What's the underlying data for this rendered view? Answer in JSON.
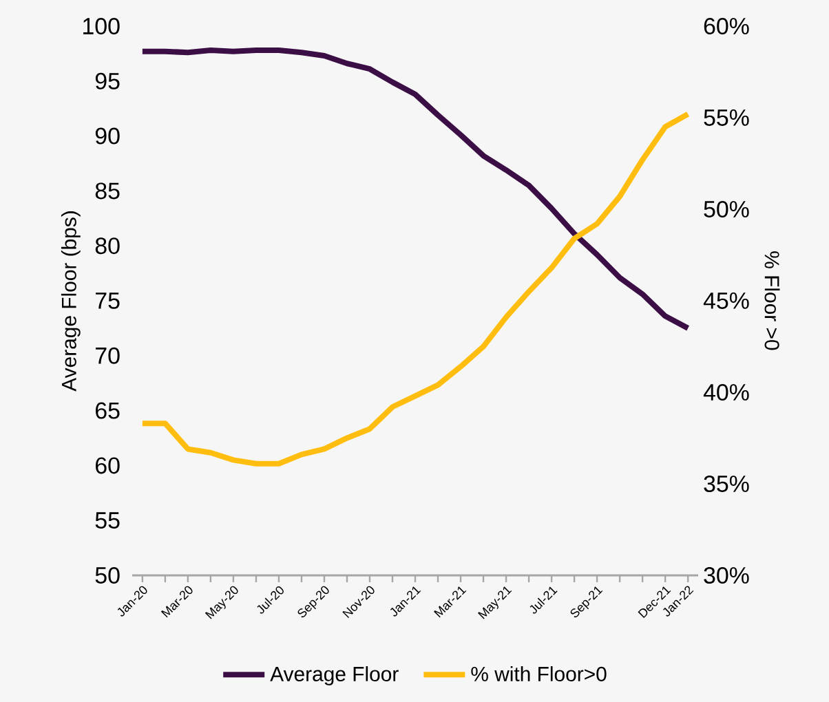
{
  "chart_data": {
    "type": "line",
    "ylabel": "Average Floor (bps)",
    "y2label": "% Floor >0",
    "categories": [
      "Jan-20",
      null,
      "Mar-20",
      null,
      "May-20",
      null,
      "Jul-20",
      null,
      "Sep-20",
      null,
      "Nov-20",
      null,
      "Jan-21",
      null,
      "Mar-21",
      null,
      "May-21",
      null,
      "Jul-21",
      null,
      "Sep-21",
      null,
      null,
      "Dec-21",
      "Jan-22"
    ],
    "series": [
      {
        "name": "Average Floor",
        "color": "#3b0f45",
        "values": [
          97.7,
          97.7,
          97.6,
          97.8,
          97.7,
          97.8,
          97.8,
          97.6,
          97.3,
          96.6,
          96.1,
          94.9,
          93.8,
          91.9,
          90.1,
          88.2,
          86.9,
          85.5,
          83.4,
          81.1,
          79.2,
          77.1,
          75.6,
          73.6,
          72.5
        ]
      },
      {
        "name": "% with Floor>0",
        "color": "#ffbe0f",
        "axis": "y2",
        "values": [
          38.3,
          38.3,
          36.9,
          36.7,
          36.3,
          36.1,
          36.1,
          36.6,
          36.9,
          37.5,
          38.0,
          39.2,
          39.8,
          40.4,
          41.4,
          42.5,
          44.1,
          45.5,
          46.8,
          48.4,
          49.2,
          50.7,
          52.7,
          54.5,
          55.2
        ]
      }
    ],
    "ylim": [
      50,
      100
    ],
    "yticks": [
      50,
      55,
      60,
      65,
      70,
      75,
      80,
      85,
      90,
      95,
      100
    ],
    "y2lim": [
      30,
      60
    ],
    "y2ticks": [
      {
        "value": 30,
        "label": "30%"
      },
      {
        "value": 35,
        "label": "35%"
      },
      {
        "value": 40,
        "label": "40%"
      },
      {
        "value": 45,
        "label": "45%"
      },
      {
        "value": 50,
        "label": "50%"
      },
      {
        "value": 55,
        "label": "55%"
      },
      {
        "value": 60,
        "label": "60%"
      }
    ],
    "legend": "bottom",
    "grid": false,
    "marker": "none",
    "line_style": "solid"
  }
}
